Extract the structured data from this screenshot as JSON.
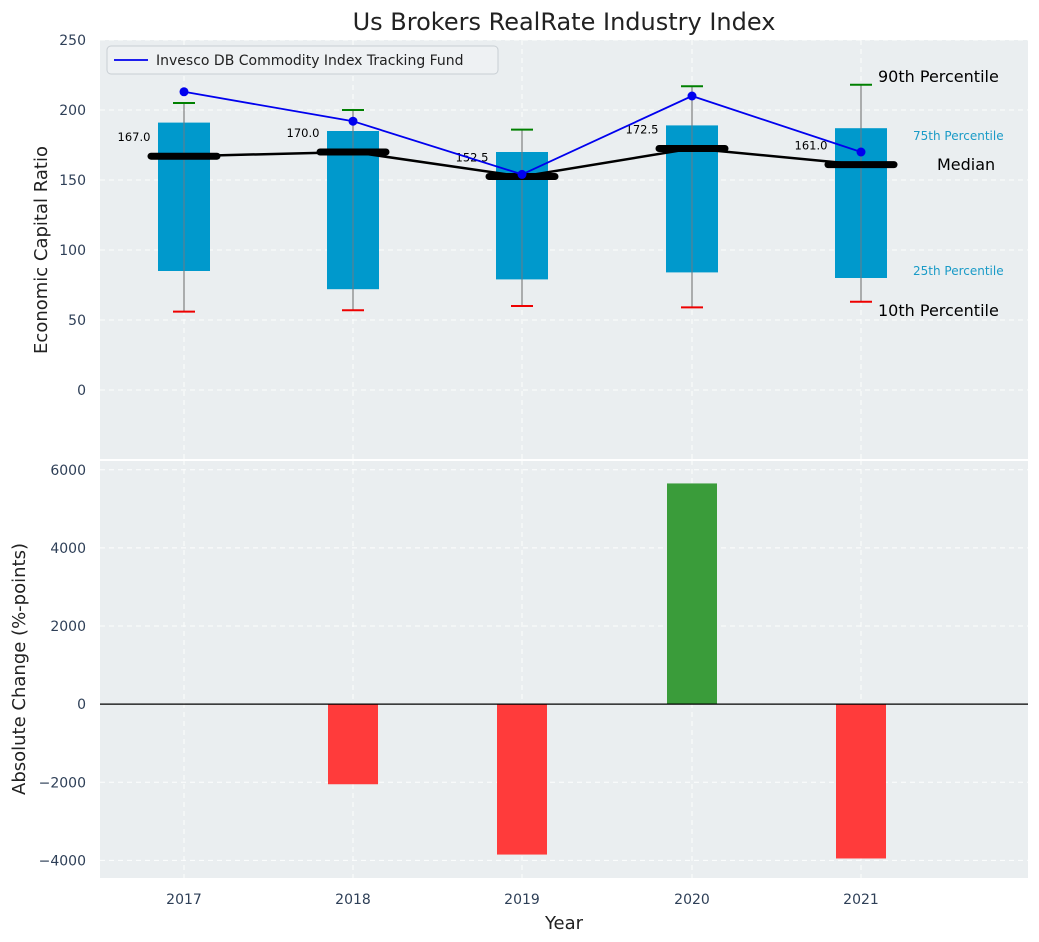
{
  "chart_data": [
    {
      "type": "box-percentile",
      "title": "Us Brokers RealRate Industry Index",
      "ylabel": "Economic Capital Ratio",
      "ylim": [
        -50,
        250
      ],
      "yticks": [
        0,
        50,
        100,
        150,
        200,
        250
      ],
      "categories": [
        "2017",
        "2018",
        "2019",
        "2020",
        "2021"
      ],
      "p10": [
        56,
        57,
        60,
        59,
        63
      ],
      "p25": [
        85,
        72,
        79,
        84,
        80
      ],
      "median": [
        167.0,
        170.0,
        152.5,
        172.5,
        161.0
      ],
      "median_labels": [
        "167.0",
        "170.0",
        "152.5",
        "172.5",
        "161.0"
      ],
      "p75": [
        191,
        185,
        170,
        189,
        187
      ],
      "p90": [
        205,
        200,
        186,
        217,
        218
      ],
      "series": [
        {
          "name": "Invesco DB Commodity Index Tracking Fund",
          "values": [
            213,
            192,
            154,
            210,
            170
          ]
        }
      ],
      "annotations": {
        "p90": "90th Percentile",
        "p75": "75th Percentile",
        "median": "Median",
        "p25": "25th Percentile",
        "p10": "10th Percentile"
      },
      "grid": true,
      "legend": "top-left"
    },
    {
      "type": "bar",
      "ylabel": "Absolute Change (%-points)",
      "xlabel": "Year",
      "ylim": [
        -4450,
        6250
      ],
      "yticks": [
        -4000,
        -2000,
        0,
        2000,
        4000,
        6000
      ],
      "ytick_labels": [
        "−4000",
        "−2000",
        "0",
        "2000",
        "4000",
        "6000"
      ],
      "categories": [
        "2017",
        "2018",
        "2019",
        "2020",
        "2021"
      ],
      "values": [
        0,
        -2050,
        -3850,
        5650,
        -3950
      ],
      "grid": true
    }
  ],
  "colors": {
    "panel_bg": "#eaeef0",
    "box": "#0099cc",
    "median_line": "#000000",
    "fund_line": "#0000ee",
    "p90_cap": "#008000",
    "p10_cap": "#ee0000",
    "bar_positive": "#3a9c3a",
    "bar_negative": "#ff3b3b",
    "percentile_annotation_small": "#1a9bc7",
    "text": "#222222",
    "tick_text": "#2e3f57"
  }
}
